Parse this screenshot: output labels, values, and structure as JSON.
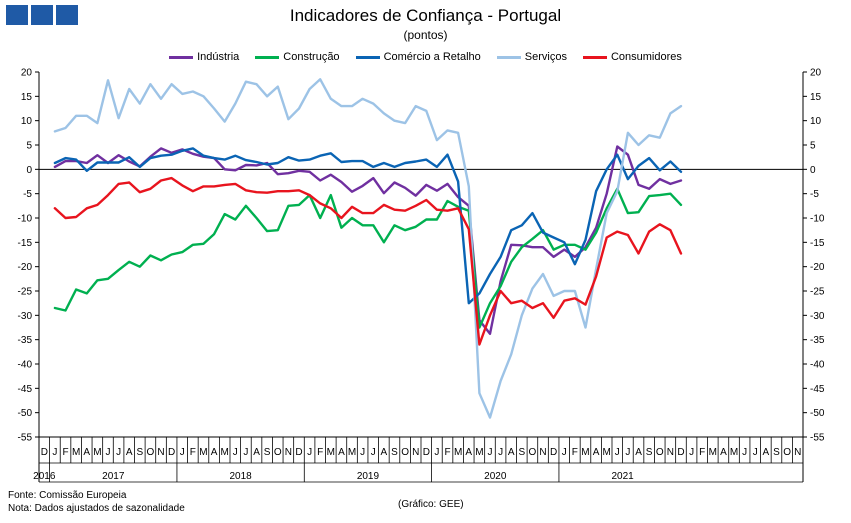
{
  "header": {
    "title": "Indicadores de Confiança - Portugal",
    "subtitle": "(pontos)"
  },
  "footer": {
    "source": "Fonte: Comissão Europeia",
    "note": "Nota: Dados ajustados de sazonalidade",
    "credit": "(Gráfico: GEE)"
  },
  "colors": {
    "logo": "#1f5aa6",
    "zero_line": "#000000"
  },
  "chart_data": {
    "type": "line",
    "title": "Indicadores de Confiança - Portugal",
    "subtitle": "(pontos)",
    "ylim": [
      -55,
      20
    ],
    "yticks": [
      20,
      15,
      10,
      5,
      0,
      -5,
      -10,
      -15,
      -20,
      -25,
      -30,
      -35,
      -40,
      -45,
      -50,
      -55
    ],
    "grid": false,
    "legend_position": "top-center",
    "month_letters": [
      "D",
      "J",
      "F",
      "M",
      "A",
      "M",
      "J",
      "J",
      "A",
      "S",
      "O",
      "N",
      "D",
      "J",
      "F",
      "M",
      "A",
      "M",
      "J",
      "J",
      "A",
      "S",
      "O",
      "N",
      "D",
      "J",
      "F",
      "M",
      "A",
      "M",
      "J",
      "J",
      "A",
      "S",
      "O",
      "N",
      "D",
      "J",
      "F",
      "M",
      "A",
      "M",
      "J",
      "J",
      "A",
      "S",
      "O",
      "N",
      "D",
      "J",
      "F",
      "M",
      "A",
      "M",
      "J",
      "J",
      "A",
      "S",
      "O",
      "N",
      "D",
      "J",
      "F",
      "M",
      "A",
      "M",
      "J",
      "J",
      "A",
      "S",
      "O",
      "N"
    ],
    "year_labels": [
      {
        "label": "2016",
        "index": 0
      },
      {
        "label": "2017",
        "index": 6.5
      },
      {
        "label": "2018",
        "index": 18.5
      },
      {
        "label": "2019",
        "index": 30.5
      },
      {
        "label": "2020",
        "index": 42.5
      },
      {
        "label": "2021",
        "index": 54.5
      }
    ],
    "year_breaks": [
      0.5,
      12.5,
      24.5,
      36.5,
      48.5
    ],
    "x": [
      "2016-12",
      "2017-01",
      "2017-02",
      "2017-03",
      "2017-04",
      "2017-05",
      "2017-06",
      "2017-07",
      "2017-08",
      "2017-09",
      "2017-10",
      "2017-11",
      "2017-12",
      "2018-01",
      "2018-02",
      "2018-03",
      "2018-04",
      "2018-05",
      "2018-06",
      "2018-07",
      "2018-08",
      "2018-09",
      "2018-10",
      "2018-11",
      "2018-12",
      "2019-01",
      "2019-02",
      "2019-03",
      "2019-04",
      "2019-05",
      "2019-06",
      "2019-07",
      "2019-08",
      "2019-09",
      "2019-10",
      "2019-11",
      "2019-12",
      "2020-01",
      "2020-02",
      "2020-03",
      "2020-04",
      "2020-05",
      "2020-06",
      "2020-07",
      "2020-08",
      "2020-09",
      "2020-10",
      "2020-11",
      "2020-12",
      "2021-01",
      "2021-02",
      "2021-03",
      "2021-04",
      "2021-05",
      "2021-06",
      "2021-07",
      "2021-08",
      "2021-09",
      "2021-10",
      "2021-11"
    ],
    "series": [
      {
        "name": "Indústria",
        "color": "#7030a0",
        "values": [
          0.5,
          1.7,
          1.7,
          1.3,
          2.9,
          1.3,
          2.9,
          1.6,
          0.6,
          2.6,
          4.3,
          3.4,
          4.1,
          3.2,
          2.6,
          2.3,
          0.0,
          -0.2,
          0.9,
          0.8,
          1.3,
          -1.0,
          -0.8,
          -0.3,
          -0.5,
          -2.3,
          -1.1,
          -2.6,
          -4.6,
          -3.4,
          -1.8,
          -4.9,
          -2.7,
          -3.8,
          -5.4,
          -3.2,
          -4.4,
          -3.0,
          -5.7,
          -7.5,
          -31.0,
          -33.8,
          -23.0,
          -15.5,
          -15.6,
          -16.0,
          -16.0,
          -18.0,
          -16.5,
          -18.0,
          -16.0,
          -12.0,
          -5.0,
          4.7,
          3.0,
          -3.2,
          -4.0,
          -2.0,
          -3.0,
          -2.3
        ]
      },
      {
        "name": "Construção",
        "color": "#00b050",
        "values": [
          -28.5,
          -29.0,
          -24.7,
          -25.5,
          -22.8,
          -22.5,
          -20.7,
          -19.0,
          -20.0,
          -17.7,
          -18.7,
          -17.5,
          -17.0,
          -15.5,
          -15.3,
          -13.3,
          -9.2,
          -10.3,
          -7.5,
          -10.0,
          -12.7,
          -12.5,
          -7.5,
          -7.3,
          -5.3,
          -10.0,
          -5.3,
          -12.0,
          -10.0,
          -11.5,
          -11.5,
          -15.0,
          -11.5,
          -12.5,
          -11.8,
          -10.3,
          -10.3,
          -6.5,
          -7.7,
          -8.5,
          -32.5,
          -27.5,
          -24.0,
          -19.0,
          -16.0,
          -14.3,
          -12.5,
          -16.5,
          -15.5,
          -15.5,
          -16.5,
          -13.0,
          -8.0,
          -4.0,
          -9.0,
          -8.8,
          -5.5,
          -5.3,
          -5.0,
          -7.3
        ]
      },
      {
        "name": "Comércio a Retalho",
        "color": "#0a64b4",
        "values": [
          1.3,
          2.3,
          2.0,
          -0.3,
          1.4,
          1.4,
          1.4,
          2.5,
          0.5,
          2.3,
          2.8,
          3.0,
          3.8,
          4.3,
          2.8,
          2.3,
          2.0,
          2.8,
          1.9,
          1.5,
          1.0,
          1.3,
          2.5,
          1.8,
          2.0,
          2.8,
          3.3,
          1.5,
          1.7,
          1.7,
          0.5,
          1.3,
          0.5,
          1.3,
          1.6,
          2.0,
          0.5,
          3.0,
          -2.5,
          -27.5,
          -25.5,
          -21.5,
          -18.0,
          -12.5,
          -11.5,
          -9.0,
          -13.0,
          -14.0,
          -15.0,
          -19.5,
          -14.5,
          -4.5,
          0.0,
          3.0,
          -2.0,
          0.7,
          2.3,
          -0.2,
          1.6,
          -0.5
        ]
      },
      {
        "name": "Serviços",
        "color": "#9dc3e6",
        "values": [
          7.8,
          8.5,
          11.0,
          11.0,
          9.5,
          18.3,
          10.5,
          16.5,
          13.5,
          17.5,
          14.5,
          17.5,
          15.5,
          16.0,
          15.0,
          12.5,
          9.8,
          13.5,
          18.0,
          17.5,
          15.0,
          17.0,
          10.3,
          12.5,
          16.5,
          18.5,
          14.5,
          13.0,
          13.0,
          14.5,
          13.5,
          11.5,
          10.0,
          9.5,
          13.0,
          12.0,
          6.0,
          8.0,
          7.5,
          -3.5,
          -46.0,
          -51.0,
          -43.5,
          -38.0,
          -30.0,
          -24.5,
          -21.5,
          -26.0,
          -25.0,
          -25.0,
          -32.5,
          -20.5,
          -9.0,
          -4.5,
          7.5,
          5.0,
          7.0,
          6.5,
          11.5,
          13.0
        ]
      },
      {
        "name": "Consumidores",
        "color": "#e8141e",
        "values": [
          -8.0,
          -10.0,
          -9.8,
          -8.0,
          -7.3,
          -5.3,
          -3.0,
          -2.7,
          -4.7,
          -4.0,
          -2.3,
          -1.8,
          -3.3,
          -4.5,
          -3.5,
          -3.5,
          -3.2,
          -3.0,
          -4.3,
          -4.7,
          -4.8,
          -4.5,
          -4.5,
          -4.3,
          -5.3,
          -7.0,
          -8.0,
          -10.0,
          -7.7,
          -9.0,
          -9.0,
          -7.3,
          -8.3,
          -8.5,
          -7.5,
          -6.3,
          -8.3,
          -8.5,
          -8.0,
          -12.3,
          -36.0,
          -30.0,
          -25.0,
          -27.5,
          -27.0,
          -28.5,
          -27.5,
          -30.5,
          -27.0,
          -26.5,
          -27.8,
          -22.0,
          -14.0,
          -12.8,
          -13.5,
          -17.3,
          -12.8,
          -11.3,
          -12.5,
          -17.3
        ]
      }
    ]
  }
}
